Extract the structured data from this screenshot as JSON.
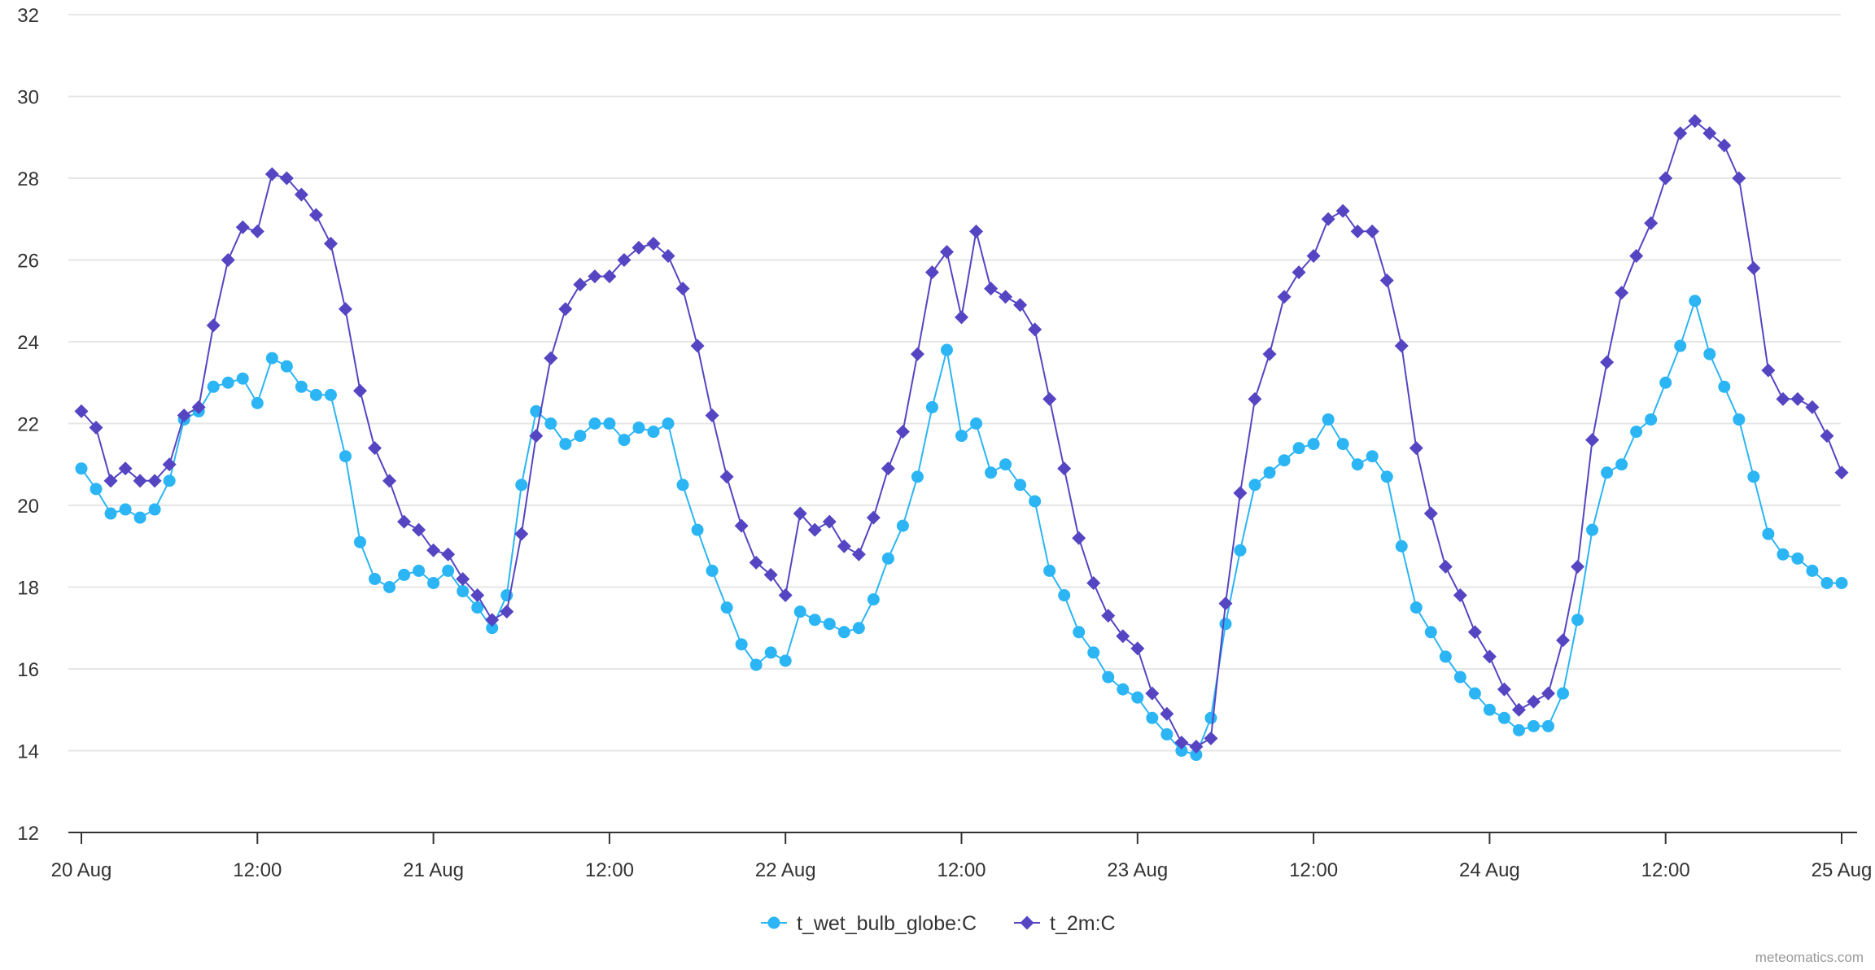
{
  "chart_data": {
    "type": "line",
    "title": "",
    "xlabel": "",
    "ylabel": "",
    "ylim": [
      12,
      32
    ],
    "yticks": [
      12,
      14,
      16,
      18,
      20,
      22,
      24,
      26,
      28,
      30,
      32
    ],
    "grid": true,
    "x_range_hours": [
      0,
      120
    ],
    "x_step_hours": 1,
    "xticks": [
      {
        "hour": 0,
        "label": "20 Aug"
      },
      {
        "hour": 12,
        "label": "12:00"
      },
      {
        "hour": 24,
        "label": "21 Aug"
      },
      {
        "hour": 36,
        "label": "12:00"
      },
      {
        "hour": 48,
        "label": "22 Aug"
      },
      {
        "hour": 60,
        "label": "12:00"
      },
      {
        "hour": 72,
        "label": "23 Aug"
      },
      {
        "hour": 84,
        "label": "12:00"
      },
      {
        "hour": 96,
        "label": "24 Aug"
      },
      {
        "hour": 108,
        "label": "12:00"
      },
      {
        "hour": 120,
        "label": "25 Aug"
      }
    ],
    "legend_position": "bottom-center",
    "series": [
      {
        "name": "t_wet_bulb_globe:C",
        "color": "#2bb5f5",
        "marker": "circle",
        "values": [
          20.9,
          20.4,
          19.8,
          19.9,
          19.7,
          19.9,
          20.6,
          22.1,
          22.3,
          22.9,
          23.0,
          23.1,
          22.5,
          23.6,
          23.4,
          22.9,
          22.7,
          22.7,
          21.2,
          19.1,
          18.2,
          18.0,
          18.3,
          18.4,
          18.1,
          18.4,
          17.9,
          17.5,
          17.0,
          17.8,
          20.5,
          22.3,
          22.0,
          21.5,
          21.7,
          22.0,
          22.0,
          21.6,
          21.9,
          21.8,
          22.0,
          20.5,
          19.4,
          18.4,
          17.5,
          16.6,
          16.1,
          16.4,
          16.2,
          17.4,
          17.2,
          17.1,
          16.9,
          17.0,
          17.7,
          18.7,
          19.5,
          20.7,
          22.4,
          23.8,
          21.7,
          22.0,
          20.8,
          21.0,
          20.5,
          20.1,
          18.4,
          17.8,
          16.9,
          16.4,
          15.8,
          15.5,
          15.3,
          14.8,
          14.4,
          14.0,
          13.9,
          14.8,
          17.1,
          18.9,
          20.5,
          20.8,
          21.1,
          21.4,
          21.5,
          22.1,
          21.5,
          21.0,
          21.2,
          20.7,
          19.0,
          17.5,
          16.9,
          16.3,
          15.8,
          15.4,
          15.0,
          14.8,
          14.5,
          14.6,
          14.6,
          15.4,
          17.2,
          19.4,
          20.8,
          21.0,
          21.8,
          22.1,
          23.0,
          23.9,
          25.0,
          23.7,
          22.9,
          22.1,
          20.7,
          19.3,
          18.8,
          18.7,
          18.4,
          18.1,
          18.1
        ]
      },
      {
        "name": "t_2m:C",
        "color": "#5545c2",
        "marker": "diamond",
        "values": [
          22.3,
          21.9,
          20.6,
          20.9,
          20.6,
          20.6,
          21.0,
          22.2,
          22.4,
          24.4,
          26.0,
          26.8,
          26.7,
          28.1,
          28.0,
          27.6,
          27.1,
          26.4,
          24.8,
          22.8,
          21.4,
          20.6,
          19.6,
          19.4,
          18.9,
          18.8,
          18.2,
          17.8,
          17.2,
          17.4,
          19.3,
          21.7,
          23.6,
          24.8,
          25.4,
          25.6,
          25.6,
          26.0,
          26.3,
          26.4,
          26.1,
          25.3,
          23.9,
          22.2,
          20.7,
          19.5,
          18.6,
          18.3,
          17.8,
          19.8,
          19.4,
          19.6,
          19.0,
          18.8,
          19.7,
          20.9,
          21.8,
          23.7,
          25.7,
          26.2,
          24.6,
          26.7,
          25.3,
          25.1,
          24.9,
          24.3,
          22.6,
          20.9,
          19.2,
          18.1,
          17.3,
          16.8,
          16.5,
          15.4,
          14.9,
          14.2,
          14.1,
          14.3,
          17.6,
          20.3,
          22.6,
          23.7,
          25.1,
          25.7,
          26.1,
          27.0,
          27.2,
          26.7,
          26.7,
          25.5,
          23.9,
          21.4,
          19.8,
          18.5,
          17.8,
          16.9,
          16.3,
          15.5,
          15.0,
          15.2,
          15.4,
          16.7,
          18.5,
          21.6,
          23.5,
          25.2,
          26.1,
          26.9,
          28.0,
          29.1,
          29.4,
          29.1,
          28.8,
          28.0,
          25.8,
          23.3,
          22.6,
          22.6,
          22.4,
          21.7,
          20.8
        ]
      }
    ]
  },
  "credit": "meteomatics.com"
}
